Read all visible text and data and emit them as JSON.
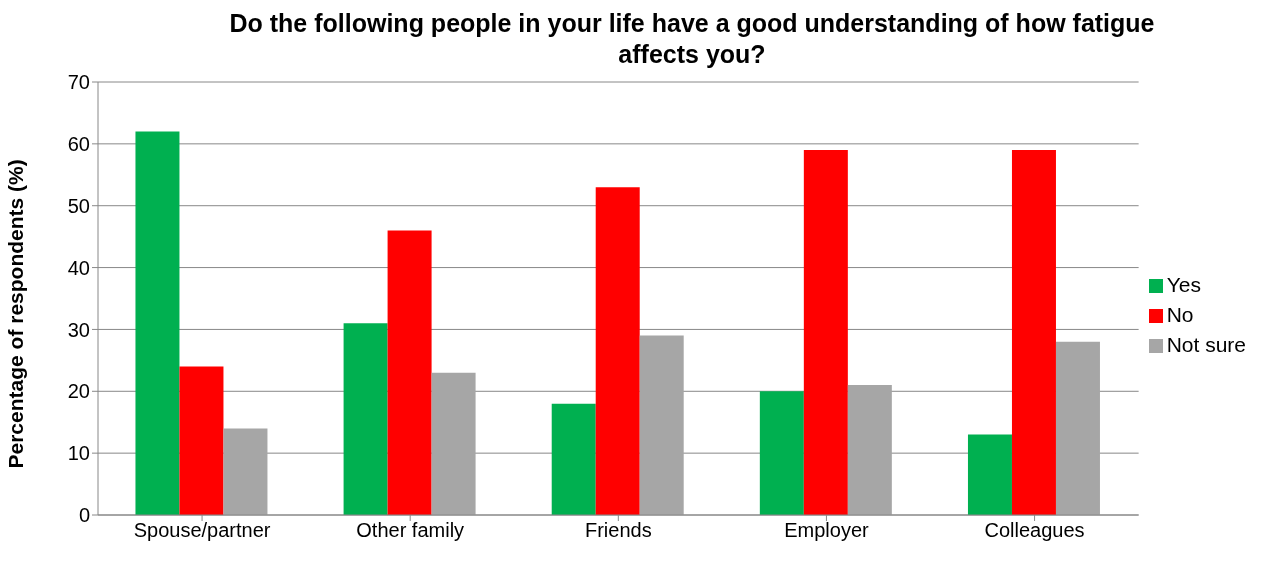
{
  "chart_data": {
    "type": "bar",
    "title": "Do the following people in your life have a good understanding of how fatigue affects you?",
    "ylabel": "Percentage of respondents  (%)",
    "categories": [
      "Spouse/partner",
      "Other family",
      "Friends",
      "Employer",
      "Colleagues"
    ],
    "series": [
      {
        "name": "Yes",
        "color": "#00b050",
        "values": [
          62,
          31,
          18,
          20,
          13
        ]
      },
      {
        "name": "No",
        "color": "#ff0000",
        "values": [
          24,
          46,
          53,
          59,
          59
        ]
      },
      {
        "name": "Not sure",
        "color": "#a6a6a6",
        "values": [
          14,
          23,
          29,
          21,
          28
        ]
      }
    ],
    "ylim": [
      0,
      70
    ],
    "yticks": [
      0,
      10,
      20,
      30,
      40,
      50,
      60,
      70
    ],
    "grid": "y",
    "legend": "right"
  }
}
